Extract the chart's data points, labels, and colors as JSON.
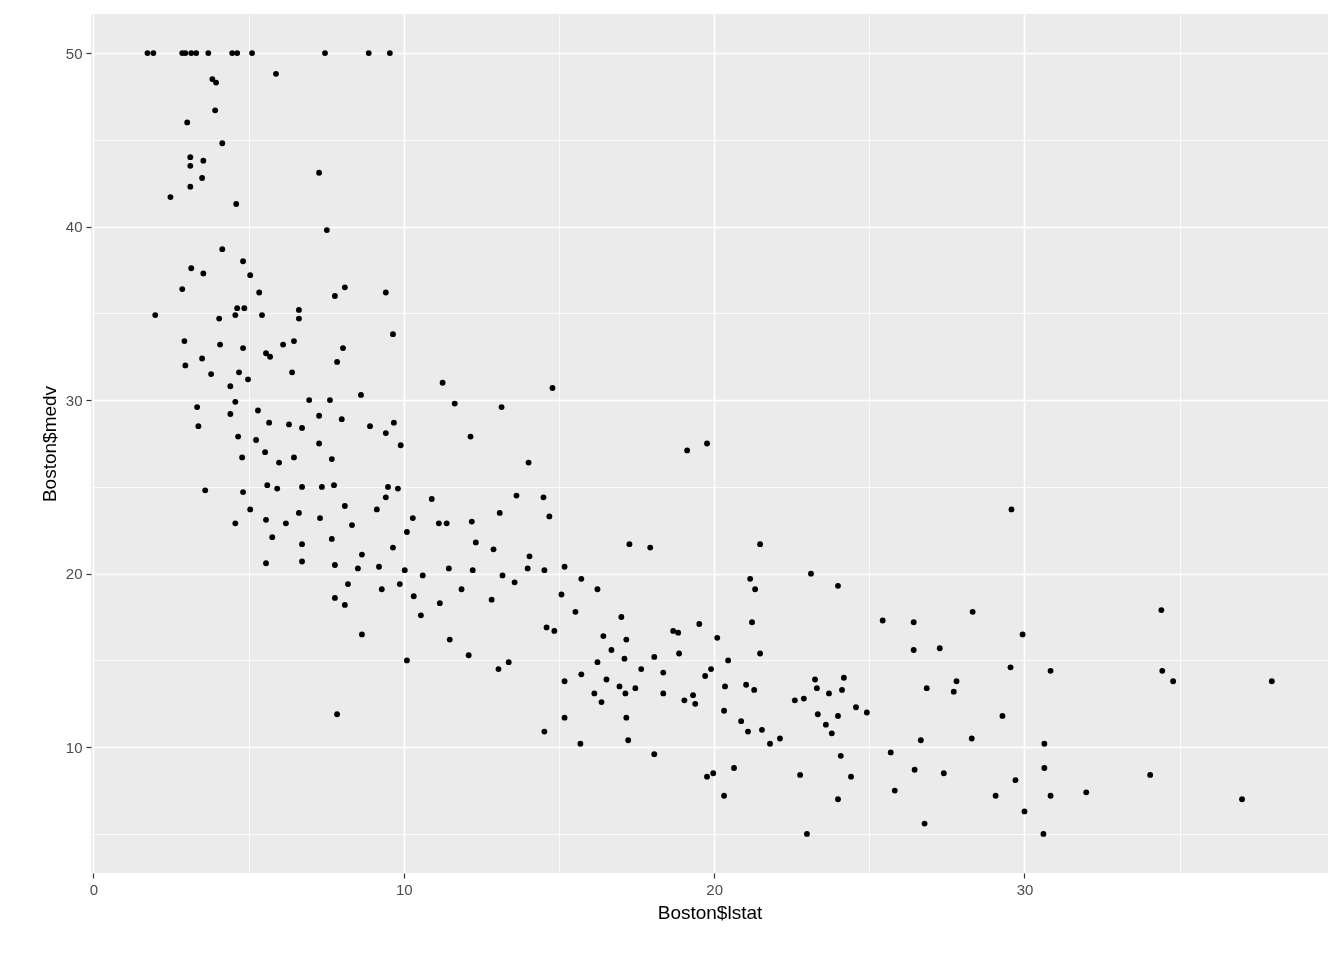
{
  "chart_data": {
    "type": "scatter",
    "xlabel": "Boston$lstat",
    "ylabel": "Boston$medv",
    "xlim": [
      -0.08,
      39.78
    ],
    "ylim": [
      2.75,
      52.25
    ],
    "xticks": [
      0,
      {
        "value": 5,
        "label": null
      },
      10,
      {
        "value": 15,
        "label": null
      },
      20,
      {
        "value": 25,
        "label": null
      },
      30,
      {
        "value": 35,
        "label": null
      }
    ],
    "yticks": [
      {
        "value": 5,
        "label": null
      },
      10,
      {
        "value": 15,
        "label": null
      },
      20,
      {
        "value": 25,
        "label": null
      },
      30,
      {
        "value": 35,
        "label": null
      },
      40,
      {
        "value": 45,
        "label": null
      },
      50
    ],
    "grid": true,
    "marker": "circle",
    "x": [
      1.74,
      1.93,
      2.86,
      2.96,
      3.15,
      3.31,
      3.7,
      4.47,
      4.63,
      5.11,
      7.46,
      8.87,
      9.55,
      5.88,
      3.83,
      3.95,
      3.92,
      3.02,
      4.15,
      3.12,
      3.12,
      7.27,
      3.54,
      3.5,
      3.12,
      2.48,
      4.6,
      4.15,
      7.52,
      4.82,
      5.05,
      3.15,
      3.54,
      2.86,
      8.1,
      9.42,
      7.78,
      5.34,
      1.99,
      4.63,
      4.86,
      5.43,
      6.62,
      4.05,
      4.57,
      6.62,
      9.65,
      2.93,
      4.08,
      6.11,
      6.46,
      8.04,
      4.82,
      5.56,
      3.5,
      5.69,
      7.85,
      4.69,
      3.79,
      2.96,
      11.25,
      14.79,
      4.98,
      6.4,
      4.41,
      8.62,
      6.95,
      7.62,
      4.57,
      3.34,
      13.15,
      11.64,
      5.3,
      7.27,
      8.0,
      4.41,
      8.91,
      5.66,
      9.68,
      6.3,
      6.72,
      3.38,
      12.15,
      9.42,
      7.27,
      4.66,
      9.9,
      19.13,
      19.77,
      5.24,
      6.46,
      7.68,
      14.02,
      5.53,
      4.79,
      5.98,
      3.6,
      4.82,
      5.6,
      5.92,
      6.72,
      7.36,
      7.75,
      9.49,
      9.81,
      4.57,
      5.05,
      5.56,
      6.2,
      6.62,
      7.3,
      8.1,
      8.33,
      9.13,
      9.42,
      10.29,
      10.9,
      11.38,
      12.19,
      13.09,
      13.63,
      14.5,
      14.69,
      5.76,
      6.72,
      7.68,
      8.65,
      9.65,
      10.1,
      11.13,
      12.32,
      12.89,
      14.05,
      15.18,
      5.56,
      6.72,
      7.78,
      8.52,
      9.2,
      10.03,
      10.61,
      11.45,
      12.22,
      13.18,
      13.99,
      14.53,
      8.2,
      9.29,
      9.87,
      10.32,
      11.16,
      11.86,
      12.83,
      13.57,
      15.08,
      15.72,
      16.24,
      7.78,
      8.1,
      10.55,
      11.48,
      12.09,
      13.05,
      13.38,
      14.6,
      14.85,
      8.65,
      10.1,
      7.85,
      15.53,
      17.01,
      21.48,
      17.94,
      17.27,
      23.12,
      23.99,
      21.16,
      21.32,
      21.22,
      21.48,
      20.1,
      19.52,
      20.45,
      19.9,
      19.71,
      20.35,
      21.03,
      21.29,
      20.32,
      20.87,
      21.09,
      21.54,
      21.8,
      22.12,
      22.6,
      22.89,
      23.25,
      23.31,
      23.7,
      24.18,
      24.12,
      23.34,
      23.6,
      23.79,
      23.99,
      24.57,
      24.92,
      25.43,
      26.43,
      26.43,
      26.85,
      26.66,
      25.69,
      26.46,
      25.82,
      26.78,
      22.99,
      22.77,
      24.08,
      24.41,
      23.99,
      20.64,
      20.32,
      19.77,
      19.97,
      18.07,
      17.23,
      17.17,
      15.69,
      15.18,
      14.53,
      15.18,
      15.72,
      16.14,
      16.37,
      16.53,
      16.95,
      17.14,
      17.46,
      17.65,
      18.07,
      18.36,
      18.36,
      19.04,
      19.39,
      19.32,
      16.24,
      17.11,
      18.68,
      18.84,
      18.87,
      16.43,
      17.17,
      16.69,
      29.58,
      28.33,
      34.41,
      29.94,
      27.27,
      29.55,
      30.84,
      34.44,
      34.79,
      37.97,
      27.81,
      27.72,
      29.29,
      28.3,
      30.64,
      27.4,
      29.71,
      30.64,
      34.05,
      29.07,
      30.84,
      31.99,
      37.01,
      30.0,
      30.61
    ],
    "series": [
      {
        "color": "#000000",
        "values": [
          50,
          50,
          50,
          50,
          50,
          50,
          50,
          50,
          50,
          50,
          50,
          50,
          50,
          48.8,
          48.5,
          48.3,
          46.7,
          46.0,
          44.8,
          44.0,
          43.5,
          43.1,
          43.8,
          42.8,
          42.3,
          41.7,
          41.3,
          38.7,
          39.8,
          38.0,
          37.2,
          37.6,
          37.3,
          36.4,
          36.5,
          36.2,
          36.0,
          36.2,
          34.9,
          35.3,
          35.3,
          34.9,
          35.2,
          34.7,
          34.9,
          34.7,
          33.8,
          33.4,
          33.2,
          33.2,
          33.4,
          33.0,
          33.0,
          32.7,
          32.4,
          32.5,
          32.2,
          31.6,
          31.5,
          32.0,
          31.0,
          30.7,
          31.2,
          31.6,
          30.8,
          30.3,
          30.0,
          30.0,
          29.9,
          29.6,
          29.6,
          29.8,
          29.4,
          29.1,
          28.9,
          29.2,
          28.5,
          28.7,
          28.7,
          28.6,
          28.4,
          28.5,
          27.9,
          28.1,
          27.5,
          27.9,
          27.4,
          27.1,
          27.5,
          27.7,
          26.7,
          26.6,
          26.4,
          27.0,
          26.7,
          26.4,
          24.8,
          24.7,
          25.1,
          24.9,
          25.0,
          25.0,
          25.1,
          25.0,
          24.9,
          22.9,
          23.7,
          23.1,
          22.9,
          23.5,
          23.2,
          23.9,
          22.8,
          23.7,
          24.4,
          23.2,
          24.3,
          22.9,
          23.0,
          23.5,
          24.5,
          24.4,
          23.3,
          22.1,
          21.7,
          22.0,
          21.1,
          21.5,
          22.4,
          22.9,
          21.8,
          21.4,
          21.0,
          20.4,
          20.6,
          20.7,
          20.5,
          20.3,
          20.4,
          20.2,
          19.9,
          20.3,
          20.2,
          19.9,
          20.3,
          20.2,
          19.4,
          19.1,
          19.4,
          18.7,
          18.3,
          19.1,
          18.5,
          19.5,
          18.8,
          19.7,
          19.1,
          18.6,
          18.2,
          17.6,
          16.2,
          15.3,
          14.5,
          14.9,
          16.9,
          16.7,
          16.5,
          15.0,
          11.9,
          17.8,
          17.5,
          21.7,
          21.5,
          21.7,
          20.0,
          19.3,
          19.7,
          19.1,
          17.2,
          15.4,
          16.3,
          17.1,
          15.0,
          14.5,
          14.1,
          13.5,
          13.6,
          13.3,
          12.1,
          11.5,
          10.9,
          11.0,
          10.2,
          10.5,
          12.7,
          12.8,
          13.9,
          13.4,
          13.1,
          14.0,
          13.3,
          11.9,
          11.3,
          10.8,
          11.8,
          12.3,
          12.0,
          17.3,
          17.2,
          15.6,
          13.4,
          10.4,
          9.7,
          8.7,
          7.5,
          5.6,
          5.0,
          8.4,
          9.5,
          8.3,
          7.0,
          8.8,
          7.2,
          8.3,
          8.5,
          9.6,
          10.4,
          11.7,
          10.2,
          11.7,
          10.9,
          13.8,
          14.2,
          13.1,
          12.6,
          13.9,
          13.5,
          13.1,
          13.4,
          14.5,
          15.2,
          14.3,
          13.1,
          12.7,
          12.5,
          13.0,
          14.9,
          15.1,
          16.7,
          16.6,
          15.4,
          16.4,
          16.2,
          15.6,
          23.7,
          17.8,
          17.9,
          16.5,
          15.7,
          14.6,
          14.4,
          14.4,
          13.8,
          13.8,
          13.8,
          13.2,
          11.8,
          10.5,
          10.2,
          8.5,
          8.1,
          8.8,
          8.4,
          7.2,
          7.2,
          7.4,
          7.0,
          6.3,
          5.0
        ]
      }
    ]
  }
}
